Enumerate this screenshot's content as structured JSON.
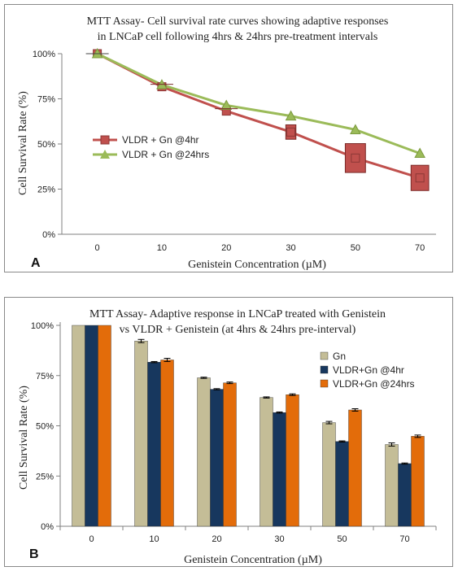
{
  "chart_data": [
    {
      "type": "line",
      "panel_label": "A",
      "title_lines": [
        "MTT Assay-  Cell survival rate curves showing adaptive responses",
        "in LNCaP cell following 4hrs & 24hrs pre-treatment intervals"
      ],
      "xlabel": "Genistein Concentration (µM)",
      "ylabel": "Cell Survival Rate (%)",
      "categories": [
        "0",
        "10",
        "20",
        "30",
        "50",
        "70"
      ],
      "yticks": [
        "0%",
        "25%",
        "50%",
        "75%",
        "100%"
      ],
      "ylim": [
        0,
        100
      ],
      "legend_position": "left-middle",
      "series": [
        {
          "name": "VLDR + Gn @4hr",
          "color": "#c0504d",
          "marker": "square",
          "values": [
            100,
            81.7,
            68.2,
            56.6,
            42.2,
            31.2
          ],
          "errors": [
            0,
            1.5,
            2,
            4,
            8,
            7
          ]
        },
        {
          "name": "VLDR + Gn @24hrs",
          "color": "#9bbb59",
          "marker": "triangle",
          "values": [
            100,
            82.8,
            71.4,
            65.5,
            57.9,
            44.8
          ],
          "errors": [
            0,
            0,
            0,
            0,
            0,
            0
          ]
        }
      ]
    },
    {
      "type": "bar",
      "panel_label": "B",
      "title_lines": [
        "MTT Assay- Adaptive response in LNCaP treated with Genistein",
        "vs VLDR + Genistein (at 4hrs & 24hrs pre-interval)"
      ],
      "xlabel": "Genistein Concentration (µM)",
      "ylabel": "Cell Survival Rate (%)",
      "categories": [
        "0",
        "10",
        "20",
        "30",
        "50",
        "70"
      ],
      "yticks": [
        "0%",
        "25%",
        "50%",
        "75%",
        "100%"
      ],
      "ylim": [
        0,
        100
      ],
      "legend_position": "top-right",
      "series": [
        {
          "name": "Gn",
          "color": "#c4bd97",
          "values": [
            100,
            92.2,
            73.9,
            64.1,
            51.6,
            40.7
          ],
          "errors": [
            0,
            0.8,
            0.3,
            0.3,
            0.6,
            0.8
          ]
        },
        {
          "name": "VLDR+Gn @4hr",
          "color": "#17375e",
          "values": [
            100,
            81.7,
            68.2,
            56.6,
            42.2,
            31.2
          ],
          "errors": [
            0,
            0.3,
            0.3,
            0.3,
            0.3,
            0.3
          ]
        },
        {
          "name": "VLDR+Gn @24hrs",
          "color": "#e36c0a",
          "values": [
            100,
            82.8,
            71.4,
            65.5,
            57.9,
            44.8
          ],
          "errors": [
            0,
            0.8,
            0.4,
            0.4,
            0.6,
            0.6
          ]
        }
      ]
    }
  ]
}
